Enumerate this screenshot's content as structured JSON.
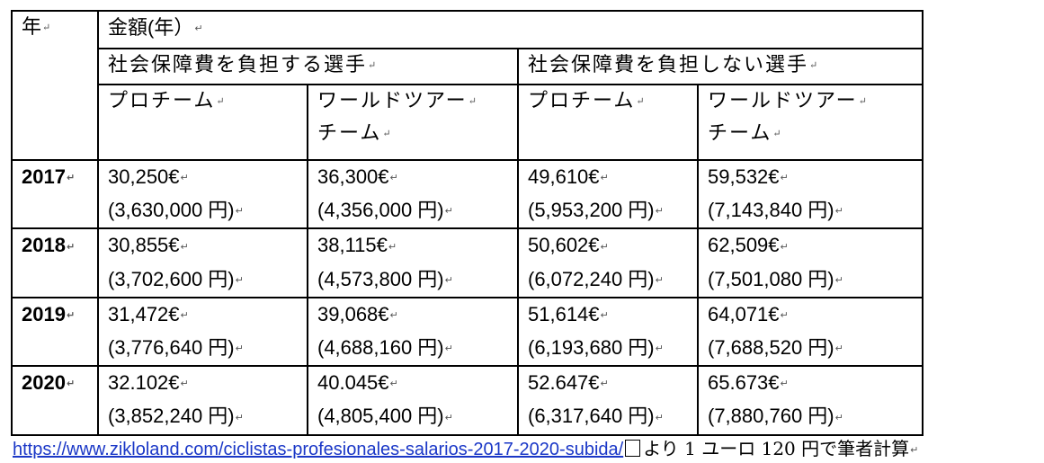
{
  "table": {
    "year_header": "年",
    "amount_header": "金額(年）",
    "group_with": "社会保障費を負担する選手",
    "group_without": "社会保障費を負担しない選手",
    "sub_pro": "プロチーム",
    "sub_wt_line1": "ワールドツアー",
    "sub_wt_line2": "チーム",
    "rows": [
      {
        "year": "2017",
        "cells": [
          {
            "eur": "30,250€",
            "yen": "(3,630,000 円)"
          },
          {
            "eur": "36,300€",
            "yen": "(4,356,000 円)"
          },
          {
            "eur": "49,610€",
            "yen": "(5,953,200 円)"
          },
          {
            "eur": "59,532€",
            "yen": "(7,143,840 円)"
          }
        ]
      },
      {
        "year": "2018",
        "cells": [
          {
            "eur": "30,855€",
            "yen": "(3,702,600 円)"
          },
          {
            "eur": "38,115€",
            "yen": "(4,573,800 円)"
          },
          {
            "eur": "50,602€",
            "yen": "(6,072,240 円)"
          },
          {
            "eur": "62,509€",
            "yen": "(7,501,080 円)"
          }
        ]
      },
      {
        "year": "2019",
        "cells": [
          {
            "eur": "31,472€",
            "yen": "(3,776,640 円)"
          },
          {
            "eur": "39,068€",
            "yen": "(4,688,160 円)"
          },
          {
            "eur": "51,614€",
            "yen": "(6,193,680 円)"
          },
          {
            "eur": "64,071€",
            "yen": "(7,688,520 円)"
          }
        ]
      },
      {
        "year": "2020",
        "cells": [
          {
            "eur": "32.102€",
            "yen": "(3,852,240 円)"
          },
          {
            "eur": "40.045€",
            "yen": "(4,805,400 円)"
          },
          {
            "eur": "52.647€",
            "yen": "(6,317,640 円)"
          },
          {
            "eur": "65.673€",
            "yen": "(7,880,760 円)"
          }
        ]
      }
    ]
  },
  "footer": {
    "link": "https://www.zikloland.com/ciclistas-profesionales-salarios-2017-2020-subida/",
    "note": "より 1 ユーロ 120 円で筆者計算"
  }
}
